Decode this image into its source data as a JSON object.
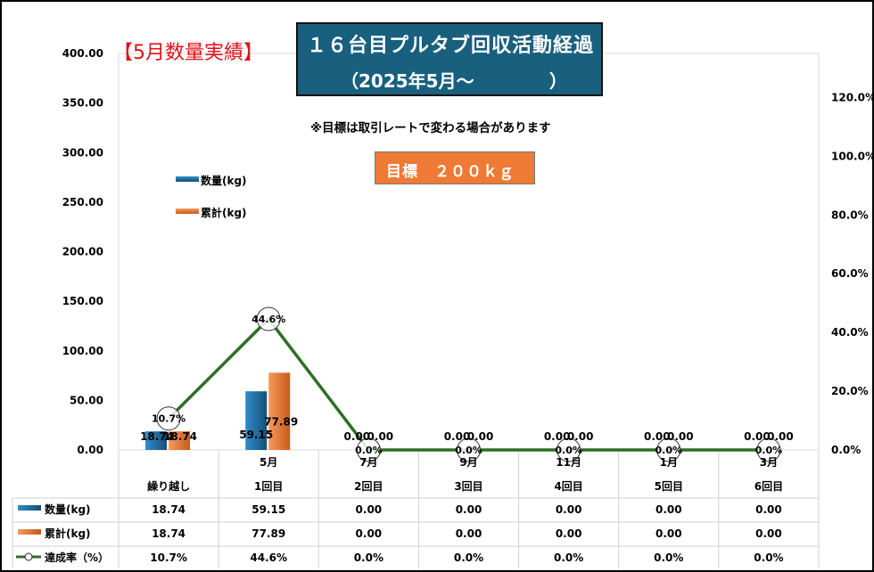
{
  "title": {
    "line1": "１６台目プルタブ回収活動経過",
    "line2": "（2025年5月～",
    "line2_close": "）"
  },
  "section_title": "【5月数量実績】",
  "note": "※目標は取引レートで変わる場合があります",
  "target": "目標　２００ｋｇ",
  "colors": {
    "quantity": "#1f6fa3",
    "cumulative": "#ee7a35",
    "rate_line": "#2e6e24",
    "title_bg": "#18607e"
  },
  "chart_data": {
    "type": "bar",
    "categories": [
      "繰り越し",
      "1回目",
      "2回目",
      "3回目",
      "4回目",
      "5回目",
      "6回目"
    ],
    "month_labels": [
      "",
      "5月",
      "7月",
      "9月",
      "11月",
      "1月",
      "3月"
    ],
    "series": [
      {
        "name": "数量(kg)",
        "type": "bar",
        "values": [
          18.74,
          59.15,
          0.0,
          0.0,
          0.0,
          0.0,
          0.0
        ]
      },
      {
        "name": "累計(kg)",
        "type": "bar",
        "values": [
          18.74,
          77.89,
          0.0,
          0.0,
          0.0,
          0.0,
          0.0
        ]
      },
      {
        "name": "達成率（%）",
        "type": "line",
        "axis": "right",
        "values": [
          10.7,
          44.6,
          0.0,
          0.0,
          0.0,
          0.0,
          0.0
        ]
      }
    ],
    "bar_labels": [
      [
        "18.74",
        "18.74"
      ],
      [
        "59.15",
        "77.89"
      ],
      [
        "0.00",
        "0.00"
      ],
      [
        "0.00",
        "0.00"
      ],
      [
        "0.00",
        "0.00"
      ],
      [
        "0.00",
        "0.00"
      ],
      [
        "0.00",
        "0.00"
      ]
    ],
    "rate_labels": [
      "10.7%",
      "44.6%",
      "0.0%",
      "0.0%",
      "0.0%",
      "0.0%",
      "0.0%"
    ],
    "ylim": [
      0,
      400
    ],
    "y2lim": [
      0,
      135
    ],
    "y_ticks": [
      "0.00",
      "50.00",
      "100.00",
      "150.00",
      "200.00",
      "250.00",
      "300.00",
      "350.00",
      "400.00"
    ],
    "y_tick_values": [
      0,
      50,
      100,
      150,
      200,
      250,
      300,
      350,
      400
    ],
    "y2_ticks": [
      "0.0%",
      "20.0%",
      "40.0%",
      "60.0%",
      "80.0%",
      "100.0%",
      "120.0%"
    ],
    "y2_tick_values": [
      0,
      20,
      40,
      60,
      80,
      100,
      120
    ],
    "legend_position": "upper-left",
    "data_table": {
      "rows": [
        {
          "label": "数量(kg)",
          "cells": [
            "18.74",
            "59.15",
            "0.00",
            "0.00",
            "0.00",
            "0.00",
            "0.00"
          ]
        },
        {
          "label": "累計(kg)",
          "cells": [
            "18.74",
            "77.89",
            "0.00",
            "0.00",
            "0.00",
            "0.00",
            "0.00"
          ]
        },
        {
          "label": "達成率（%）",
          "cells": [
            "10.7%",
            "44.6%",
            "0.0%",
            "0.0%",
            "0.0%",
            "0.0%",
            "0.0%"
          ]
        }
      ]
    }
  }
}
